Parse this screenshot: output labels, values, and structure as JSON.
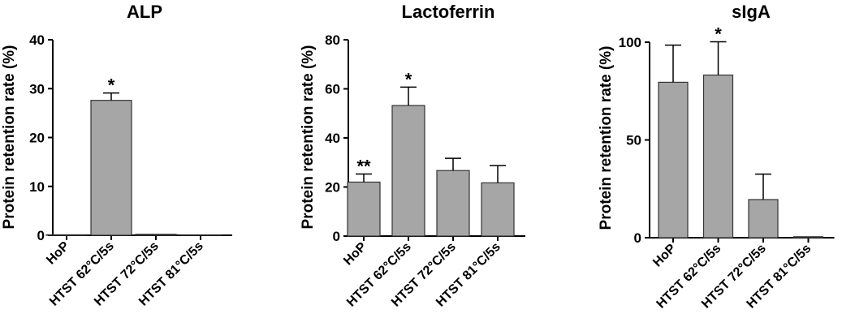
{
  "chart_data": [
    {
      "type": "bar",
      "title": "ALP",
      "ylabel": "Protein retention rate (%)",
      "categories": [
        "HoP",
        "HTST 62°C/5s",
        "HTST 72°C/5s",
        "HTST 81°C/5s"
      ],
      "values": [
        0.1,
        27.6,
        0.2,
        0
      ],
      "errors": [
        0,
        1.5,
        0,
        0
      ],
      "annotations": [
        "",
        "*",
        "",
        ""
      ],
      "ylim": [
        0,
        40
      ],
      "yticks": [
        0,
        10,
        20,
        30,
        40
      ],
      "bar_color": "#a6a6a6"
    },
    {
      "type": "bar",
      "title": "Lactoferrin",
      "ylabel": "Protein retention rate (%)",
      "categories": [
        "HoP",
        "HTST 62°C/5s",
        "HTST 72°C/5s",
        "HTST 81°C/5s"
      ],
      "values": [
        22,
        53.2,
        26.7,
        21.7
      ],
      "errors": [
        3.3,
        7.5,
        5,
        7
      ],
      "annotations": [
        "**",
        "*",
        "",
        ""
      ],
      "ylim": [
        0,
        80
      ],
      "yticks": [
        0,
        20,
        40,
        60,
        80
      ],
      "bar_color": "#a6a6a6"
    },
    {
      "type": "bar",
      "title": "sIgA",
      "ylabel": "Protein retention rate (%)",
      "categories": [
        "HoP",
        "HTST 62°C/5s",
        "HTST 72°C/5s",
        "HTST 81°C/5s"
      ],
      "values": [
        79.5,
        83.2,
        19.5,
        0.5
      ],
      "errors": [
        19,
        17,
        13,
        0
      ],
      "annotations": [
        "",
        "*",
        "",
        ""
      ],
      "ylim": [
        0,
        100
      ],
      "yticks": [
        0,
        50,
        100
      ],
      "bar_color": "#a6a6a6"
    }
  ]
}
